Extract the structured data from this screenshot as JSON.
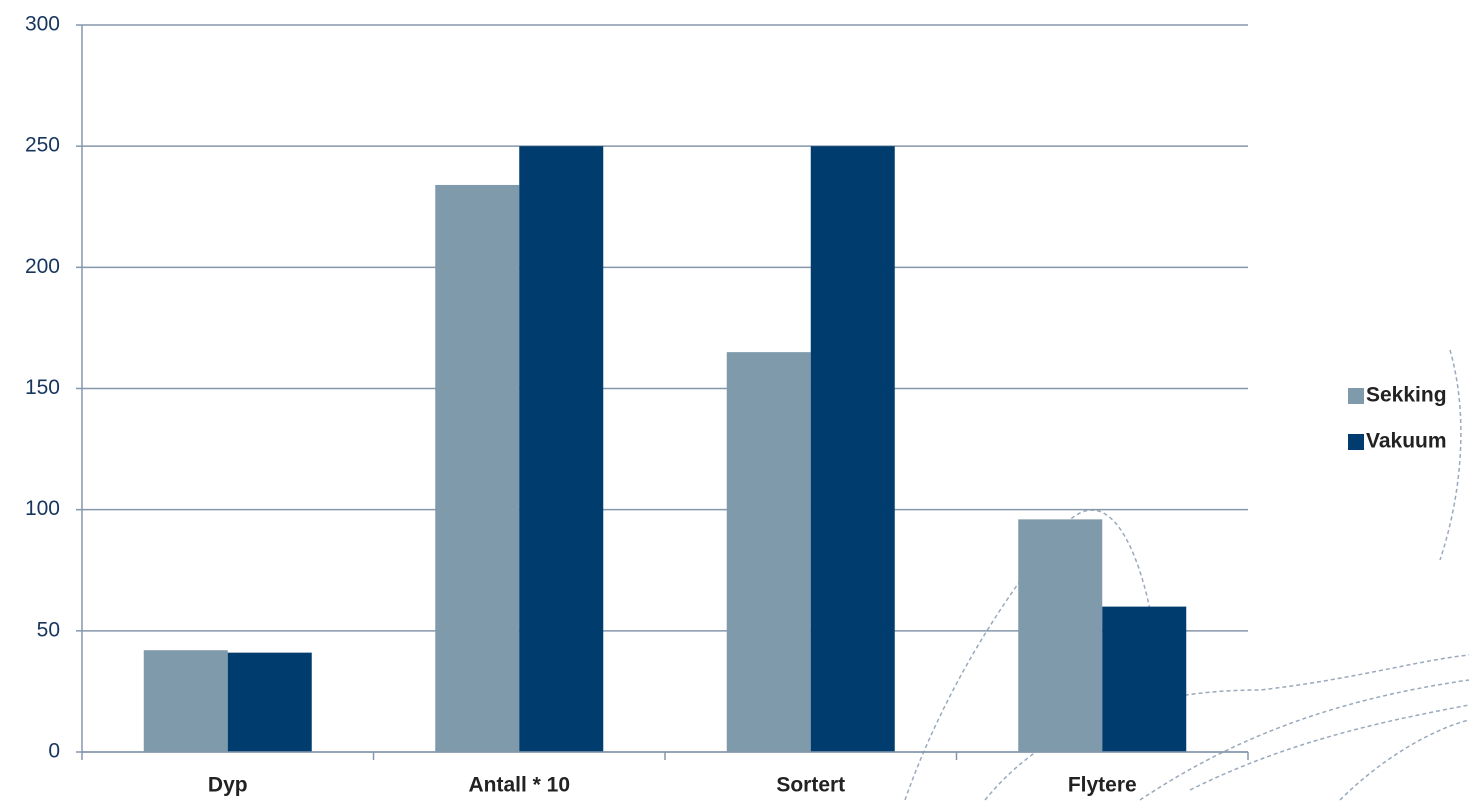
{
  "chart_data": {
    "type": "bar",
    "categories": [
      "Dyp",
      "Antall * 10",
      "Sortert",
      "Flytere"
    ],
    "series": [
      {
        "name": "Sekking",
        "color": "#7f9aab",
        "values": [
          42,
          234,
          165,
          96
        ]
      },
      {
        "name": "Vakuum",
        "color": "#003d6e",
        "values": [
          41,
          250,
          250,
          60
        ]
      }
    ],
    "ylim": [
      0,
      300
    ],
    "yticks": [
      0,
      50,
      100,
      150,
      200,
      250,
      300
    ],
    "grid": true,
    "legend": "right"
  }
}
